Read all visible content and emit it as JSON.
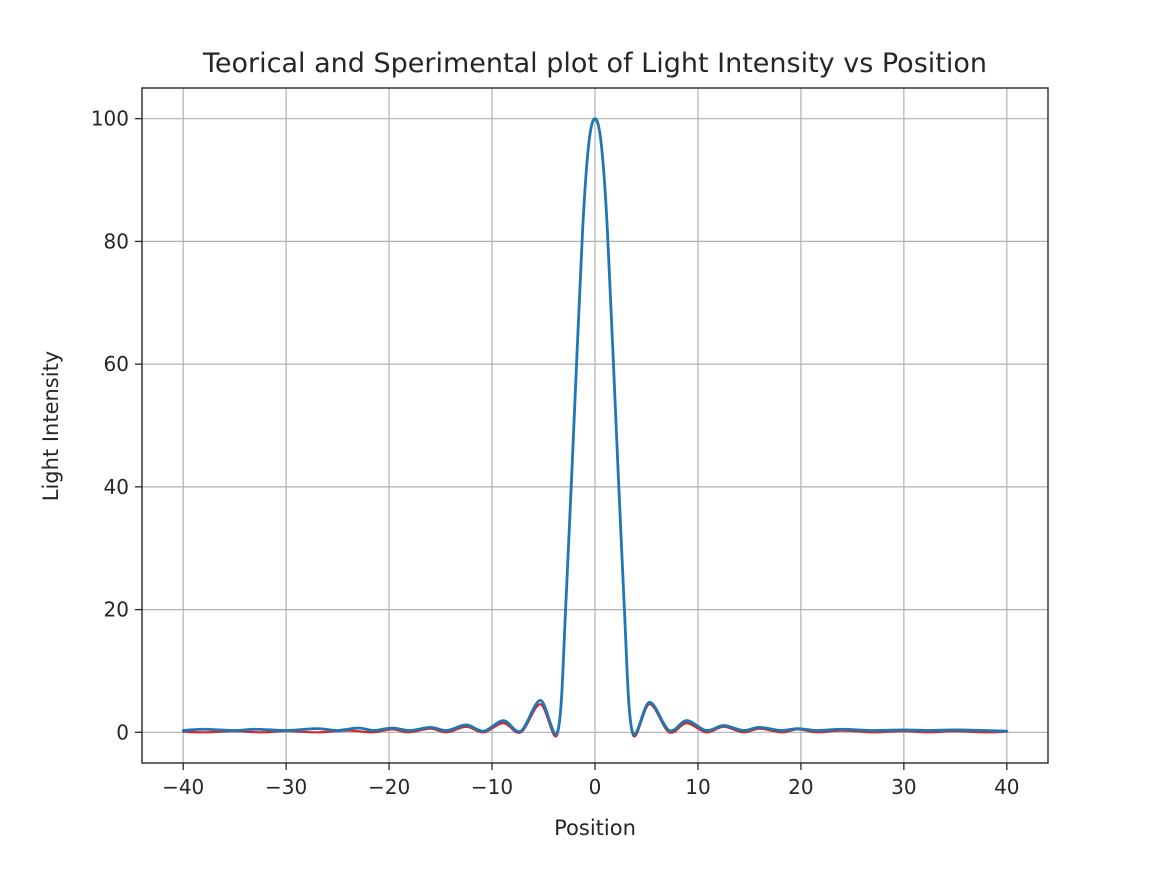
{
  "chart_data": {
    "type": "line",
    "title": "Teorical and Sperimental plot of Light Intensity vs Position",
    "xlabel": "Position",
    "ylabel": "Light Intensity",
    "xlim": [
      -44,
      44
    ],
    "ylim": [
      -5,
      105
    ],
    "grid": true,
    "x_ticks": [
      -40,
      -30,
      -20,
      -10,
      0,
      10,
      20,
      30,
      40
    ],
    "x_tick_labels": [
      "−40",
      "−30",
      "−20",
      "−10",
      "0",
      "10",
      "20",
      "30",
      "40"
    ],
    "y_ticks": [
      0,
      20,
      40,
      60,
      80,
      100
    ],
    "y_tick_labels": [
      "0",
      "20",
      "40",
      "60",
      "80",
      "100"
    ],
    "series": [
      {
        "color": "#d62728",
        "points": [
          [
            -40,
            0.1
          ],
          [
            -37.8,
            0.0
          ],
          [
            -35,
            0.2
          ],
          [
            -32.4,
            0.0
          ],
          [
            -30,
            0.2
          ],
          [
            -27,
            0.0
          ],
          [
            -24,
            0.3
          ],
          [
            -21.6,
            0.0
          ],
          [
            -19.7,
            0.5
          ],
          [
            -18.1,
            0.0
          ],
          [
            -16.0,
            0.6
          ],
          [
            -14.4,
            0.0
          ],
          [
            -12.5,
            0.9
          ],
          [
            -10.8,
            0.0
          ],
          [
            -8.9,
            1.5
          ],
          [
            -7.2,
            0.0
          ],
          [
            -5.3,
            4.6
          ],
          [
            -3.6,
            0.0
          ],
          [
            -2.8,
            22
          ],
          [
            -2.0,
            52
          ],
          [
            -1.2,
            82
          ],
          [
            -0.6,
            96
          ],
          [
            0,
            100
          ],
          [
            0.6,
            96
          ],
          [
            1.2,
            82
          ],
          [
            2.0,
            52
          ],
          [
            2.8,
            22
          ],
          [
            3.6,
            0.0
          ],
          [
            5.3,
            4.6
          ],
          [
            7.2,
            0.0
          ],
          [
            8.9,
            1.5
          ],
          [
            10.8,
            0.0
          ],
          [
            12.5,
            0.9
          ],
          [
            14.4,
            0.0
          ],
          [
            16.0,
            0.6
          ],
          [
            18.1,
            0.0
          ],
          [
            19.7,
            0.5
          ],
          [
            21.6,
            0.0
          ],
          [
            24,
            0.3
          ],
          [
            27,
            0.0
          ],
          [
            30,
            0.2
          ],
          [
            32.4,
            0.0
          ],
          [
            35,
            0.2
          ],
          [
            37.8,
            0.0
          ],
          [
            40,
            0.1
          ]
        ]
      },
      {
        "color": "#1f77b4",
        "points": [
          [
            -40,
            0.3
          ],
          [
            -38,
            0.5
          ],
          [
            -35,
            0.3
          ],
          [
            -33,
            0.5
          ],
          [
            -30,
            0.3
          ],
          [
            -27,
            0.6
          ],
          [
            -25,
            0.3
          ],
          [
            -23,
            0.7
          ],
          [
            -21.5,
            0.3
          ],
          [
            -19.7,
            0.7
          ],
          [
            -18.0,
            0.3
          ],
          [
            -16.0,
            0.8
          ],
          [
            -14.4,
            0.3
          ],
          [
            -12.5,
            1.2
          ],
          [
            -10.8,
            0.2
          ],
          [
            -8.9,
            1.9
          ],
          [
            -7.2,
            0.2
          ],
          [
            -5.3,
            5.2
          ],
          [
            -3.6,
            0.3
          ],
          [
            -2.8,
            22
          ],
          [
            -2.0,
            52
          ],
          [
            -1.2,
            82
          ],
          [
            -0.6,
            96
          ],
          [
            0,
            100
          ],
          [
            0.6,
            96
          ],
          [
            1.2,
            82
          ],
          [
            2.0,
            52
          ],
          [
            2.8,
            22
          ],
          [
            3.6,
            0.3
          ],
          [
            5.3,
            4.9
          ],
          [
            7.2,
            0.3
          ],
          [
            8.9,
            1.9
          ],
          [
            10.8,
            0.3
          ],
          [
            12.5,
            1.1
          ],
          [
            14.4,
            0.3
          ],
          [
            16.0,
            0.8
          ],
          [
            18.1,
            0.3
          ],
          [
            19.7,
            0.6
          ],
          [
            21.6,
            0.3
          ],
          [
            24,
            0.5
          ],
          [
            27,
            0.3
          ],
          [
            30,
            0.4
          ],
          [
            32.4,
            0.3
          ],
          [
            35,
            0.4
          ],
          [
            37.8,
            0.3
          ],
          [
            40,
            0.2
          ]
        ]
      }
    ]
  }
}
